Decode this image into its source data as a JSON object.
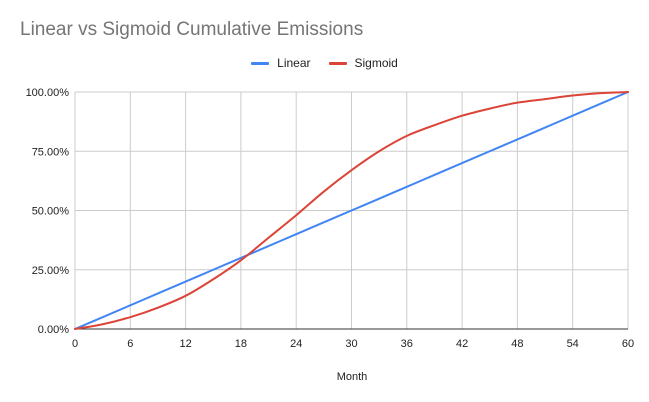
{
  "chart_data": {
    "type": "line",
    "title": "Linear vs Sigmoid Cumulative Emissions",
    "xlabel": "Month",
    "ylabel": "",
    "x": [
      0,
      3,
      6,
      9,
      12,
      15,
      18,
      21,
      24,
      27,
      30,
      33,
      36,
      39,
      42,
      45,
      48,
      51,
      54,
      57,
      60
    ],
    "xlim": [
      0,
      60
    ],
    "ylim": [
      0,
      1
    ],
    "x_ticks": [
      "0",
      "6",
      "12",
      "18",
      "24",
      "30",
      "36",
      "42",
      "48",
      "54",
      "60"
    ],
    "y_ticks": [
      "0.00%",
      "25.00%",
      "50.00%",
      "75.00%",
      "100.00%"
    ],
    "grid": true,
    "legend_position": "top",
    "series": [
      {
        "name": "Linear",
        "color": "#4285f4",
        "values": [
          0.0,
          0.05,
          0.1,
          0.15,
          0.2,
          0.25,
          0.3,
          0.35,
          0.4,
          0.45,
          0.5,
          0.55,
          0.6,
          0.65,
          0.7,
          0.75,
          0.8,
          0.85,
          0.9,
          0.95,
          1.0
        ]
      },
      {
        "name": "Sigmoid",
        "color": "#db4437",
        "values": [
          0.0,
          0.02,
          0.05,
          0.09,
          0.14,
          0.21,
          0.29,
          0.385,
          0.48,
          0.58,
          0.67,
          0.75,
          0.815,
          0.86,
          0.9,
          0.93,
          0.955,
          0.97,
          0.985,
          0.995,
          1.0
        ]
      }
    ]
  }
}
